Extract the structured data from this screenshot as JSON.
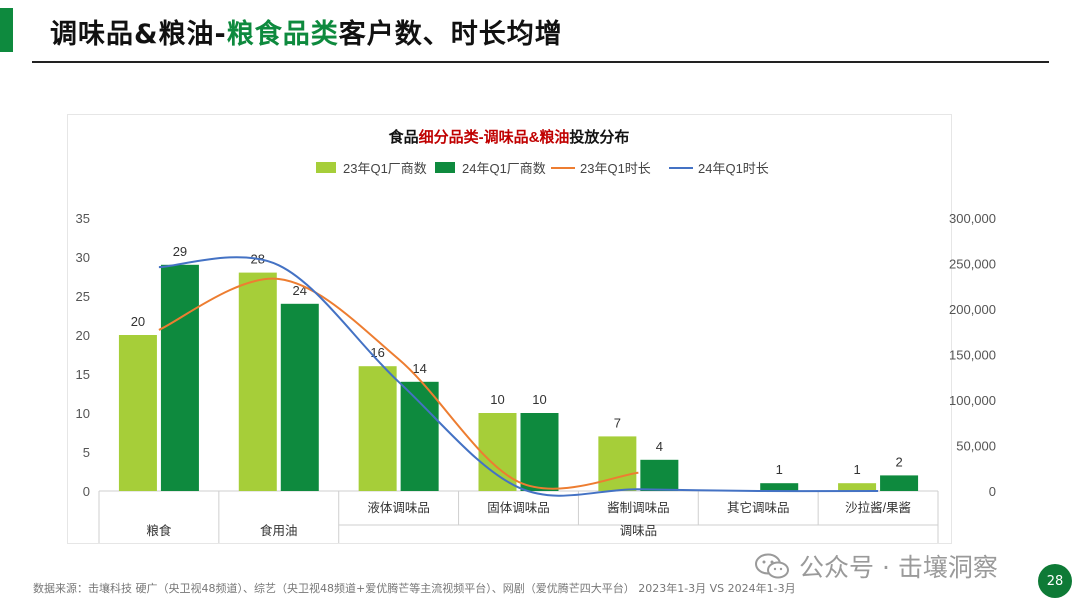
{
  "page": {
    "title_part1": "调味品&粮油-",
    "title_highlight": "粮食品类",
    "title_part2": "客户数、时长均增",
    "source": "数据来源：击壤科技 硬广（央卫视48频道）、综艺（央卫视48频道+爱优腾芒等主流视频平台）、网剧（爱优腾芒四大平台） 2023年1-3月 VS 2024年1-3月",
    "watermark": "公众号 · 击壤洞察",
    "page_number": "28"
  },
  "colors": {
    "accent": "#0e8a3e",
    "bar_23": "#a6ce39",
    "bar_24": "#0e8a3e",
    "line_23": "#ed7d31",
    "line_24": "#4472c4",
    "title_red": "#c00000"
  },
  "chart_data": {
    "type": "bar",
    "title_prefix": "食品",
    "title_highlight": "细分品类-调味品&粮油",
    "title_suffix": "投放分布",
    "categories": [
      "粮食",
      "食用油",
      "液体调味品",
      "固体调味品",
      "酱制调味品",
      "其它调味品",
      "沙拉酱/果酱"
    ],
    "group_label": "调味品",
    "series": [
      {
        "name": "23年Q1厂商数",
        "kind": "bar",
        "axis": "left",
        "values": [
          20,
          28,
          16,
          10,
          7,
          null,
          1
        ]
      },
      {
        "name": "24年Q1厂商数",
        "kind": "bar",
        "axis": "left",
        "values": [
          29,
          24,
          14,
          10,
          4,
          1,
          2
        ]
      },
      {
        "name": "23年Q1时长",
        "kind": "line",
        "axis": "right",
        "values": [
          177000,
          233000,
          145000,
          10000,
          20000,
          null,
          null
        ]
      },
      {
        "name": "24年Q1时长",
        "kind": "line",
        "axis": "right",
        "values": [
          246000,
          248000,
          120000,
          4000,
          2000,
          0,
          0
        ]
      }
    ],
    "y_left": {
      "min": 0,
      "max": 35,
      "ticks": [
        0,
        5,
        10,
        15,
        20,
        25,
        30,
        35
      ]
    },
    "y_right": {
      "min": 0,
      "max": 300000,
      "ticks": [
        "0",
        "50,000",
        "100,000",
        "150,000",
        "200,000",
        "250,000",
        "300,000"
      ]
    },
    "legend_position": "top-center",
    "grid": false
  }
}
